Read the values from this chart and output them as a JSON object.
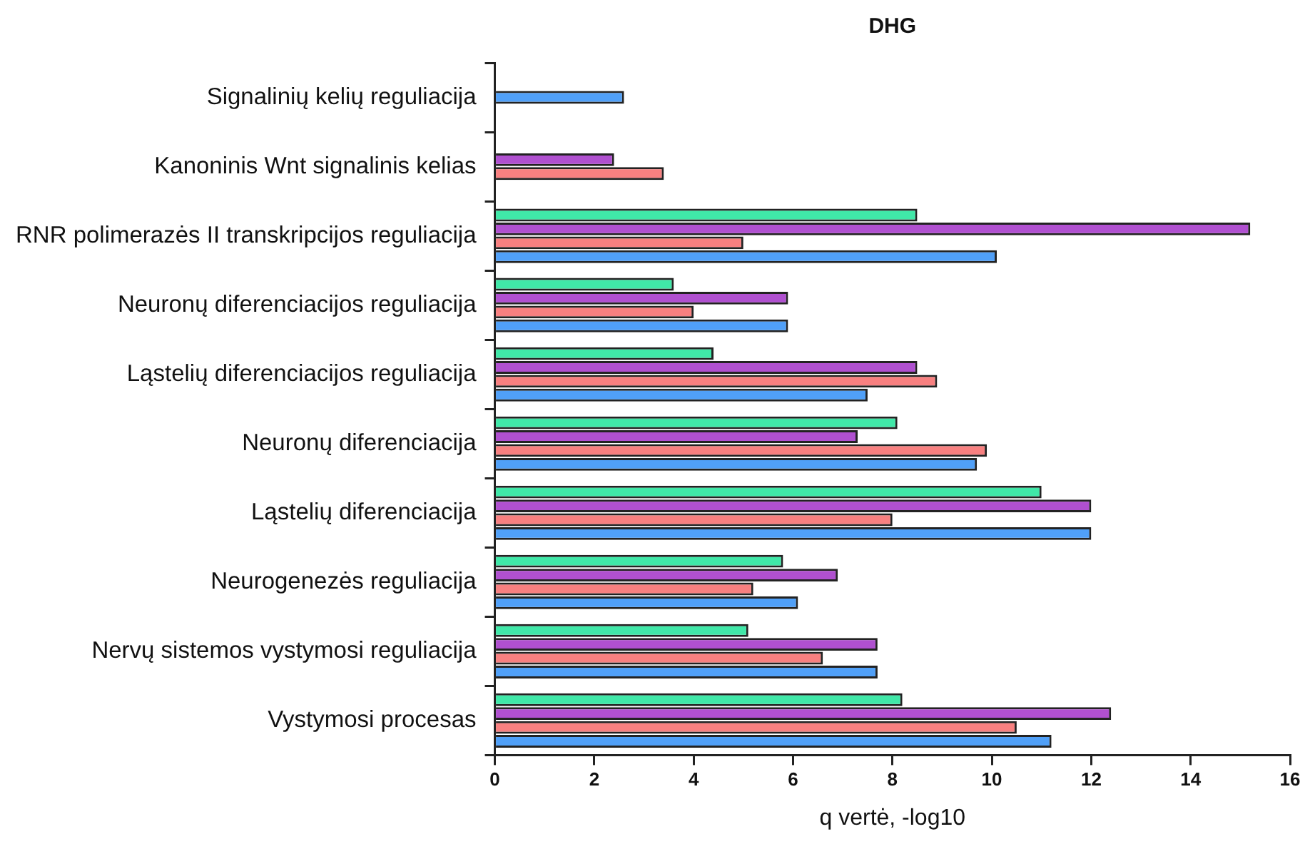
{
  "chart_data": {
    "type": "bar",
    "orientation": "horizontal",
    "title": "DHG",
    "xlabel": "q vertė, -log10",
    "categories": [
      "Signalinių kelių reguliacija",
      "Kanoninis Wnt signalinis kelias",
      "RNR polimerazės II transkripcijos reguliacija",
      "Neuronų diferenciacijos reguliacija",
      "Ląstelių diferenciacijos reguliacija",
      "Neuronų diferenciacija",
      "Ląstelių diferenciacija",
      "Neurogenezės reguliacija",
      "Nervų sistemos vystymosi reguliacija",
      "Vystymosi procesas"
    ],
    "series": [
      {
        "color": "#40e8a8",
        "values": [
          null,
          null,
          8.5,
          3.6,
          4.4,
          8.1,
          11.0,
          5.8,
          5.1,
          8.2
        ]
      },
      {
        "color": "#b050d0",
        "values": [
          null,
          2.4,
          15.2,
          5.9,
          8.5,
          7.3,
          12.0,
          6.9,
          7.7,
          12.4
        ]
      },
      {
        "color": "#f88080",
        "values": [
          null,
          3.4,
          5.0,
          4.0,
          8.9,
          9.9,
          8.0,
          5.2,
          6.6,
          10.5
        ]
      },
      {
        "color": "#50a0f8",
        "values": [
          2.6,
          null,
          10.1,
          5.9,
          7.5,
          9.7,
          12.0,
          6.1,
          7.7,
          11.2
        ]
      }
    ],
    "xlim": [
      0,
      16
    ],
    "xticks": [
      0,
      2,
      4,
      6,
      8,
      10,
      12,
      14,
      16
    ],
    "grid": false,
    "legend": false
  }
}
